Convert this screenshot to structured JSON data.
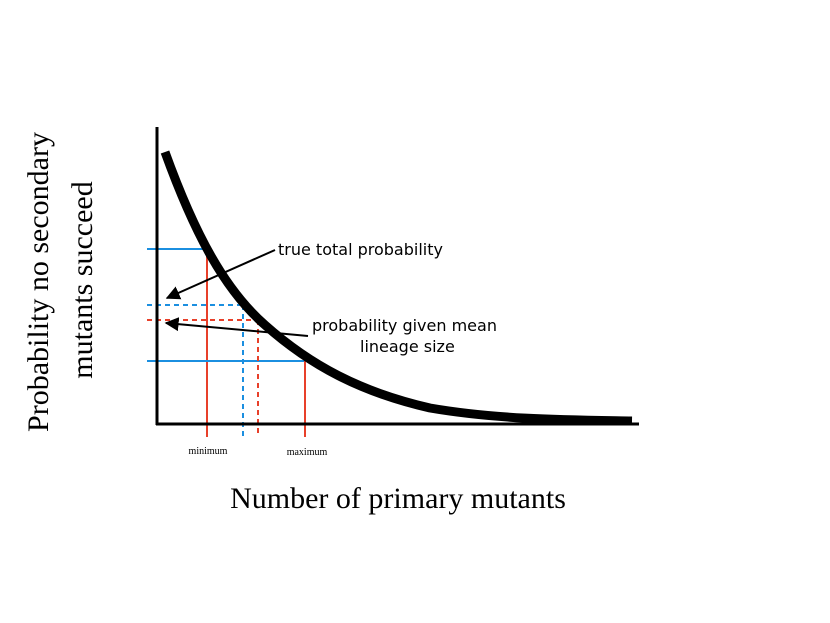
{
  "axes": {
    "x_label": "Number of primary mutants",
    "y_label": [
      "Probability no secondary",
      "mutants succeed"
    ]
  },
  "markers": [
    "minimum",
    "maximum"
  ],
  "annotations": {
    "true_total": "true total probability",
    "given_mean": [
      "probability given mean",
      "lineage size"
    ]
  }
}
